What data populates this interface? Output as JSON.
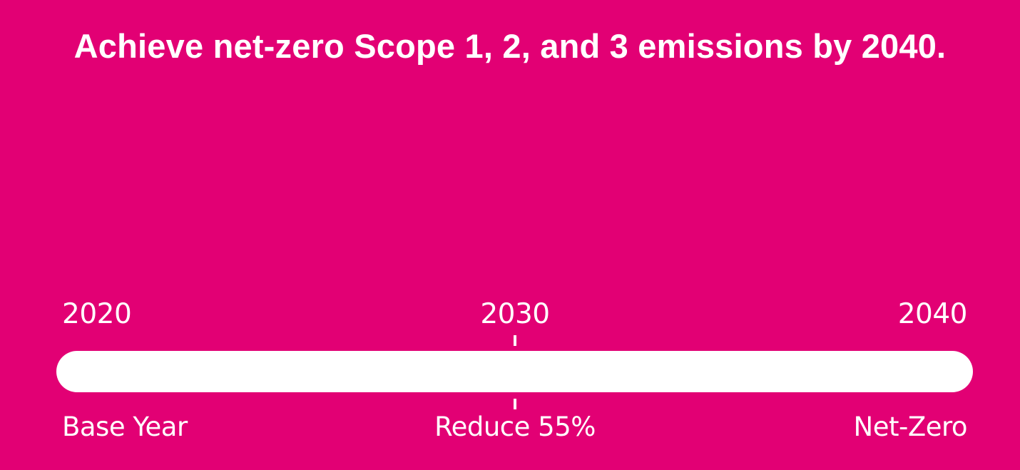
{
  "headline": "Achieve net-zero Scope 1, 2, and 3 emissions by 2040.",
  "timeline": {
    "start": {
      "year": "2020",
      "label": "Base Year"
    },
    "middle": {
      "year": "2030",
      "label": "Reduce 55%"
    },
    "end": {
      "year": "2040",
      "label": "Net-Zero"
    }
  },
  "colors": {
    "background": "#E20074",
    "foreground": "#FFFFFF"
  }
}
